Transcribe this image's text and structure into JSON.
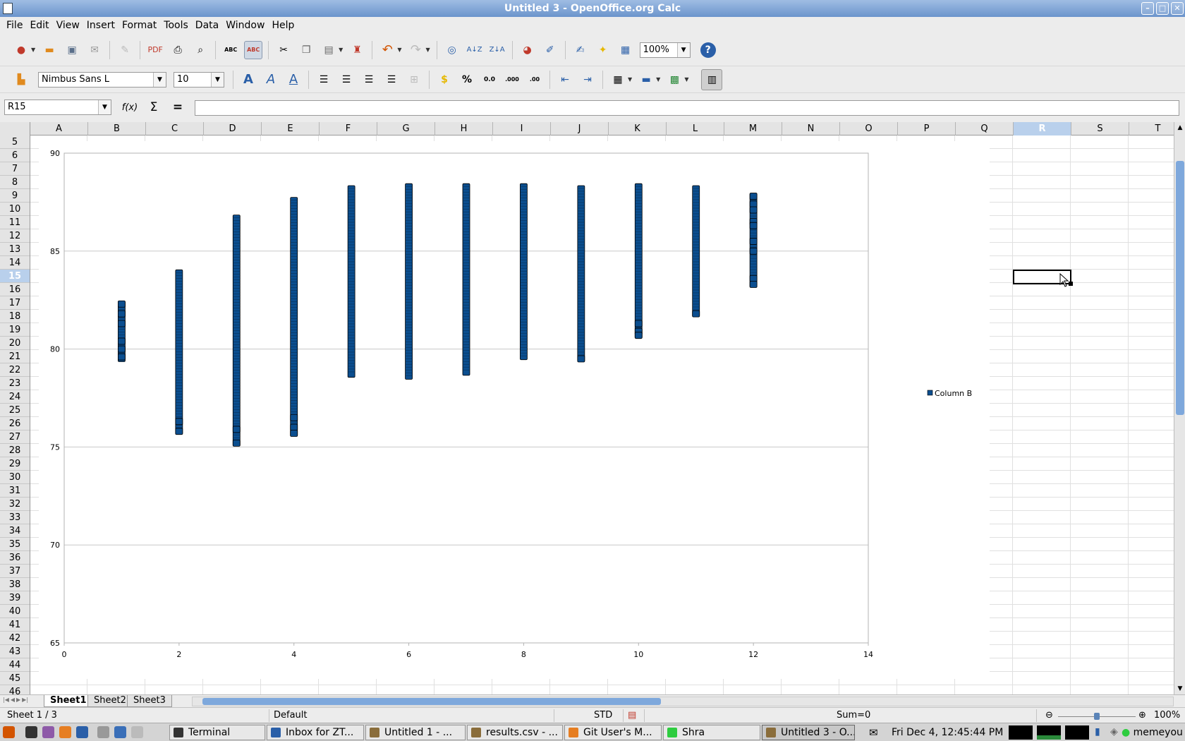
{
  "window": {
    "title": "Untitled 3 - OpenOffice.org Calc",
    "buttons": [
      "–",
      "□",
      "✕"
    ]
  },
  "menu": [
    "File",
    "Edit",
    "View",
    "Insert",
    "Format",
    "Tools",
    "Data",
    "Window",
    "Help"
  ],
  "toolbar": {
    "zoom": "100%",
    "font_name": "Nimbus Sans L",
    "font_size": "10",
    "spell_label": "ABC",
    "autospell_label": "ABC",
    "percent_label": "%",
    "decimal_label": "0.0",
    "decimal_add_label": ".000",
    "decimal_del_label": ".00"
  },
  "formula_bar": {
    "cell_ref": "R15",
    "content": "",
    "function_wizard": "f(x)",
    "sum_label": "Σ",
    "equals_label": "="
  },
  "columns": [
    "A",
    "B",
    "C",
    "D",
    "E",
    "F",
    "G",
    "H",
    "I",
    "J",
    "K",
    "L",
    "M",
    "N",
    "O",
    "P",
    "Q",
    "R",
    "S",
    "T"
  ],
  "selected_column": "R",
  "rows": [
    "5",
    "6",
    "7",
    "8",
    "9",
    "10",
    "11",
    "12",
    "13",
    "14",
    "15",
    "16",
    "17",
    "18",
    "19",
    "20",
    "21",
    "22",
    "23",
    "24",
    "25",
    "26",
    "27",
    "28",
    "29",
    "30",
    "31",
    "32",
    "33",
    "34",
    "35",
    "36",
    "37",
    "38",
    "39",
    "40",
    "41",
    "42",
    "43",
    "44",
    "45",
    "46"
  ],
  "selected_row": "15",
  "chart_data": {
    "type": "scatter",
    "title": "",
    "xlabel": "",
    "ylabel": "",
    "xlim": [
      0,
      14
    ],
    "ylim": [
      65,
      90
    ],
    "x_ticks": [
      "0",
      "2",
      "4",
      "6",
      "8",
      "10",
      "12",
      "14"
    ],
    "y_ticks": [
      "65",
      "70",
      "75",
      "80",
      "85",
      "90"
    ],
    "grid": "horizontal major",
    "legend_position": "right",
    "series": [
      {
        "name": "Column B",
        "color": "#0b4e8f",
        "ranges": [
          {
            "x": 1,
            "min": 79.5,
            "max": 82.3
          },
          {
            "x": 2,
            "min": 75.8,
            "max": 83.9
          },
          {
            "x": 3,
            "min": 75.2,
            "max": 86.7
          },
          {
            "x": 4,
            "min": 75.7,
            "max": 87.6
          },
          {
            "x": 5,
            "min": 78.7,
            "max": 88.2
          },
          {
            "x": 6,
            "min": 78.6,
            "max": 88.3
          },
          {
            "x": 7,
            "min": 78.8,
            "max": 88.3
          },
          {
            "x": 8,
            "min": 79.6,
            "max": 88.3
          },
          {
            "x": 9,
            "min": 79.5,
            "max": 88.2
          },
          {
            "x": 10,
            "min": 80.7,
            "max": 88.3
          },
          {
            "x": 11,
            "min": 81.8,
            "max": 88.2
          },
          {
            "x": 12,
            "min": 83.3,
            "max": 87.8
          }
        ],
        "points": [
          {
            "x": 1,
            "y": 82.3
          },
          {
            "x": 1,
            "y": 81.8
          },
          {
            "x": 1,
            "y": 81.3
          },
          {
            "x": 1,
            "y": 80.4
          },
          {
            "x": 1,
            "y": 80.0
          },
          {
            "x": 1,
            "y": 79.6
          },
          {
            "x": 2,
            "y": 76.3
          },
          {
            "x": 2,
            "y": 75.8
          },
          {
            "x": 3,
            "y": 75.9
          },
          {
            "x": 3,
            "y": 75.2
          },
          {
            "x": 4,
            "y": 76.5
          },
          {
            "x": 4,
            "y": 76.0
          },
          {
            "x": 4,
            "y": 75.7
          },
          {
            "x": 9,
            "y": 79.5
          },
          {
            "x": 10,
            "y": 81.3
          },
          {
            "x": 10,
            "y": 80.9
          },
          {
            "x": 10,
            "y": 80.7
          },
          {
            "x": 11,
            "y": 81.8
          },
          {
            "x": 12,
            "y": 87.8
          },
          {
            "x": 12,
            "y": 87.4
          },
          {
            "x": 12,
            "y": 87.1
          },
          {
            "x": 12,
            "y": 86.5
          },
          {
            "x": 12,
            "y": 86.3
          },
          {
            "x": 12,
            "y": 85.5
          },
          {
            "x": 12,
            "y": 85.0
          },
          {
            "x": 12,
            "y": 83.6
          },
          {
            "x": 12,
            "y": 83.3
          }
        ]
      }
    ]
  },
  "sheets": [
    "Sheet1",
    "Sheet2",
    "Sheet3"
  ],
  "active_sheet": "Sheet1",
  "status": {
    "sheet_pos": "Sheet 1 / 3",
    "page_style": "Default",
    "mode": "STD",
    "sum": "Sum=0",
    "zoom": "100%",
    "zoom_level": 0.5
  },
  "taskbar": {
    "tasks": [
      {
        "label": "Terminal",
        "active": false
      },
      {
        "label": "Inbox for ZT...",
        "active": false
      },
      {
        "label": "Untitled 1 - ...",
        "active": false
      },
      {
        "label": "results.csv - ...",
        "active": false
      },
      {
        "label": "Git User's M...",
        "active": false
      },
      {
        "label": "Shra",
        "active": false
      },
      {
        "label": "Untitled 3 - O...",
        "active": true
      }
    ],
    "clock": "Fri Dec  4, 12:45:44 PM",
    "user": "memeyou"
  }
}
